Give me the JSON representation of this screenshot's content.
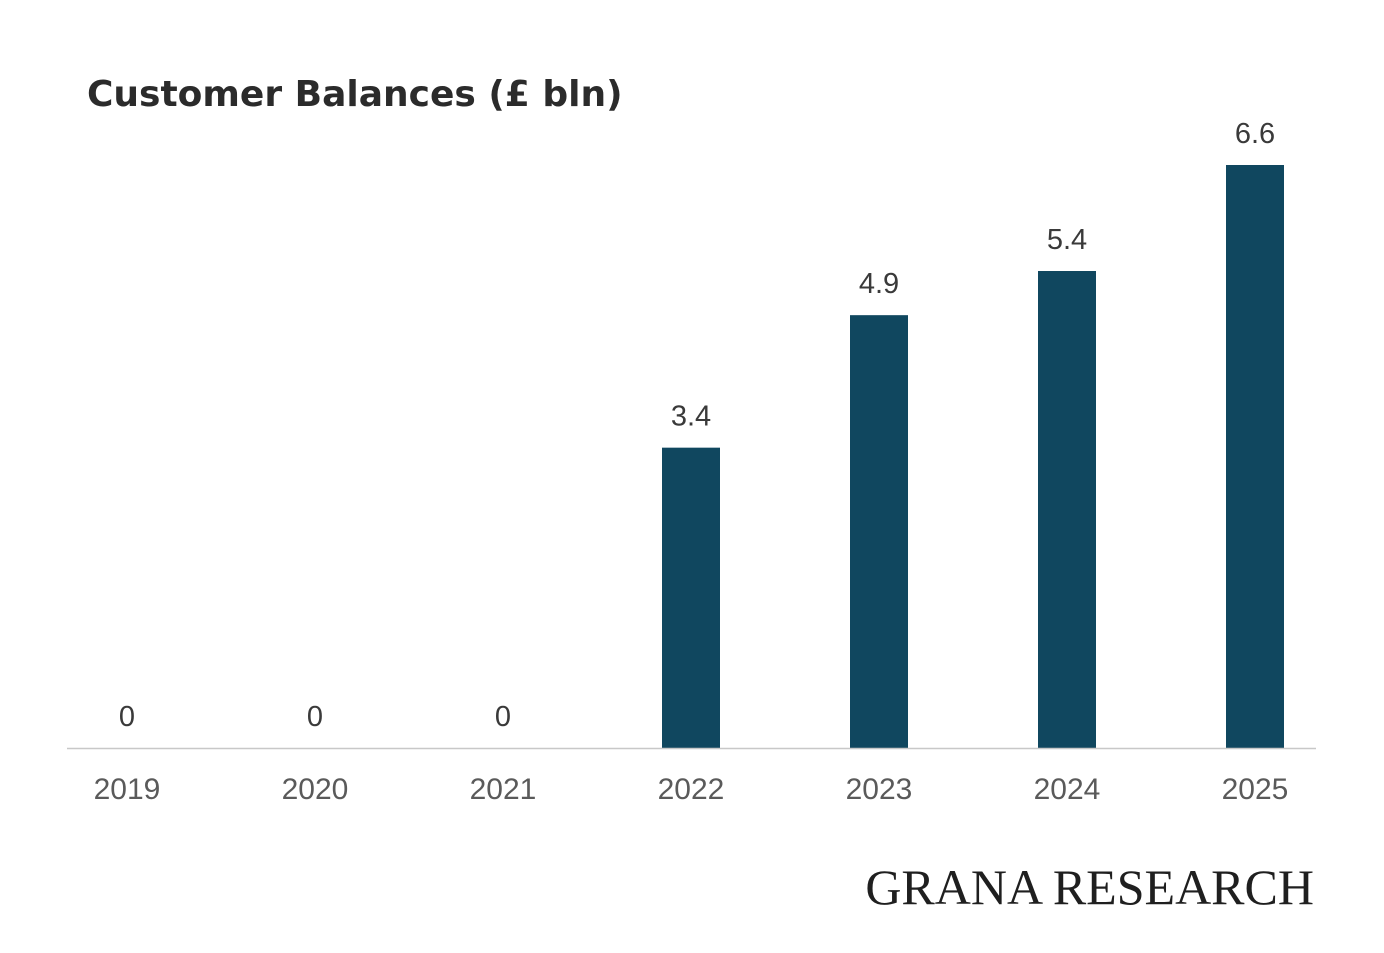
{
  "chart_data": {
    "type": "bar",
    "title": "Customer Balances (£ bln)",
    "categories": [
      "2019",
      "2020",
      "2021",
      "2022",
      "2023",
      "2024",
      "2025"
    ],
    "values": [
      0,
      0,
      0,
      3.4,
      4.9,
      5.4,
      6.6
    ],
    "value_labels": [
      "0",
      "0",
      "0",
      "3.4",
      "4.9",
      "5.4",
      "6.6"
    ],
    "xlabel": "",
    "ylabel": "",
    "ylim": [
      0,
      6.6
    ],
    "grid": false,
    "legend": "none",
    "bar_color": "#10475f"
  },
  "watermark": "GRANA RESEARCH"
}
